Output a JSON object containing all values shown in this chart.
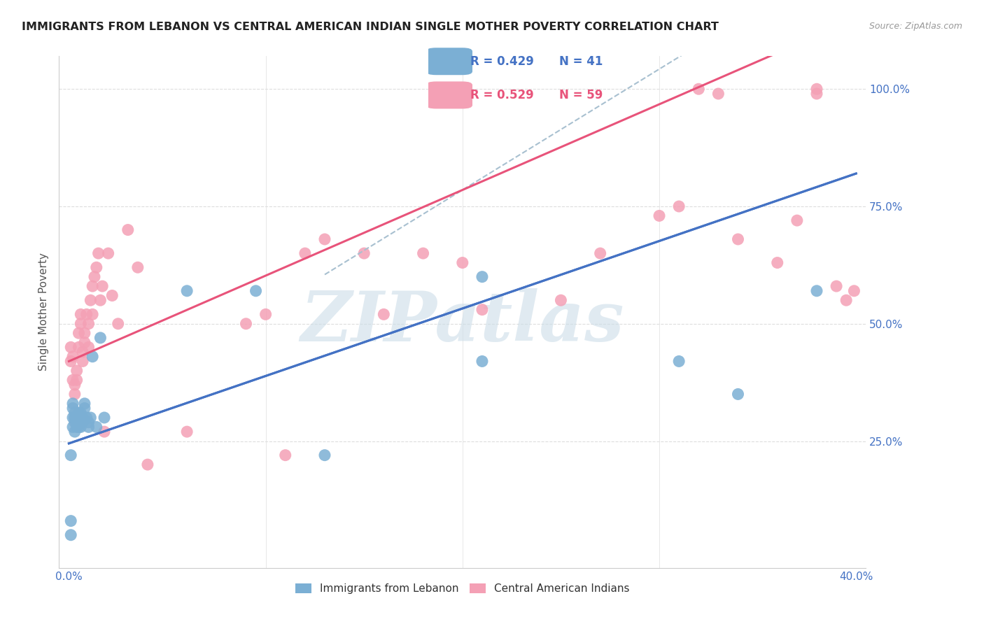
{
  "title": "IMMIGRANTS FROM LEBANON VS CENTRAL AMERICAN INDIAN SINGLE MOTHER POVERTY CORRELATION CHART",
  "source": "Source: ZipAtlas.com",
  "ylabel": "Single Mother Poverty",
  "ytick_labels": [
    "25.0%",
    "50.0%",
    "75.0%",
    "100.0%"
  ],
  "ytick_values": [
    0.25,
    0.5,
    0.75,
    1.0
  ],
  "xtick_positions": [
    0.0,
    0.1,
    0.2,
    0.3,
    0.4
  ],
  "xtick_labels": [
    "0.0%",
    "",
    "",
    "",
    "40.0%"
  ],
  "legend_label_blue": "Immigrants from Lebanon",
  "legend_label_pink": "Central American Indians",
  "legend_r_blue": "R = 0.429",
  "legend_n_blue": "N = 41",
  "legend_r_pink": "R = 0.529",
  "legend_n_pink": "N = 59",
  "blue_color": "#7bafd4",
  "pink_color": "#f4a0b5",
  "trend_blue_color": "#4472c4",
  "trend_pink_color": "#e8537a",
  "trend_dash_color": "#a8c0d0",
  "watermark": "ZIPatlas",
  "watermark_color": "#ccdde8",
  "bg_color": "#ffffff",
  "grid_color": "#dddddd",
  "axis_label_color": "#4472c4",
  "title_color": "#222222",
  "blue_scatter_x": [
    0.001,
    0.001,
    0.001,
    0.002,
    0.002,
    0.002,
    0.002,
    0.003,
    0.003,
    0.003,
    0.003,
    0.004,
    0.004,
    0.004,
    0.005,
    0.005,
    0.005,
    0.005,
    0.006,
    0.006,
    0.006,
    0.007,
    0.007,
    0.008,
    0.008,
    0.009,
    0.01,
    0.01,
    0.011,
    0.012,
    0.014,
    0.016,
    0.018,
    0.06,
    0.095,
    0.13,
    0.21,
    0.21,
    0.31,
    0.34,
    0.38
  ],
  "blue_scatter_y": [
    0.22,
    0.05,
    0.08,
    0.28,
    0.3,
    0.32,
    0.33,
    0.29,
    0.27,
    0.3,
    0.31,
    0.28,
    0.3,
    0.29,
    0.31,
    0.3,
    0.28,
    0.29,
    0.3,
    0.31,
    0.28,
    0.29,
    0.3,
    0.32,
    0.33,
    0.3,
    0.29,
    0.28,
    0.3,
    0.43,
    0.28,
    0.47,
    0.3,
    0.57,
    0.57,
    0.22,
    0.6,
    0.42,
    0.42,
    0.35,
    0.57
  ],
  "pink_scatter_x": [
    0.001,
    0.001,
    0.002,
    0.002,
    0.003,
    0.003,
    0.004,
    0.004,
    0.005,
    0.005,
    0.006,
    0.006,
    0.007,
    0.007,
    0.008,
    0.008,
    0.009,
    0.01,
    0.01,
    0.011,
    0.012,
    0.012,
    0.013,
    0.014,
    0.015,
    0.016,
    0.017,
    0.018,
    0.02,
    0.022,
    0.025,
    0.03,
    0.035,
    0.04,
    0.06,
    0.09,
    0.1,
    0.11,
    0.12,
    0.13,
    0.15,
    0.16,
    0.18,
    0.2,
    0.21,
    0.25,
    0.27,
    0.3,
    0.31,
    0.32,
    0.33,
    0.34,
    0.36,
    0.37,
    0.38,
    0.38,
    0.39,
    0.395,
    0.399
  ],
  "pink_scatter_y": [
    0.42,
    0.45,
    0.38,
    0.43,
    0.35,
    0.37,
    0.4,
    0.38,
    0.45,
    0.48,
    0.5,
    0.52,
    0.44,
    0.42,
    0.46,
    0.48,
    0.52,
    0.45,
    0.5,
    0.55,
    0.58,
    0.52,
    0.6,
    0.62,
    0.65,
    0.55,
    0.58,
    0.27,
    0.65,
    0.56,
    0.5,
    0.7,
    0.62,
    0.2,
    0.27,
    0.5,
    0.52,
    0.22,
    0.65,
    0.68,
    0.65,
    0.52,
    0.65,
    0.63,
    0.53,
    0.55,
    0.65,
    0.73,
    0.75,
    1.0,
    0.99,
    0.68,
    0.63,
    0.72,
    0.99,
    1.0,
    0.58,
    0.55,
    0.57
  ],
  "xlim": [
    -0.005,
    0.405
  ],
  "ylim": [
    -0.02,
    1.07
  ],
  "blue_trend": [
    0.245,
    0.82
  ],
  "pink_trend": [
    0.42,
    1.15
  ],
  "dash_trend": [
    0.27,
    1.3
  ]
}
